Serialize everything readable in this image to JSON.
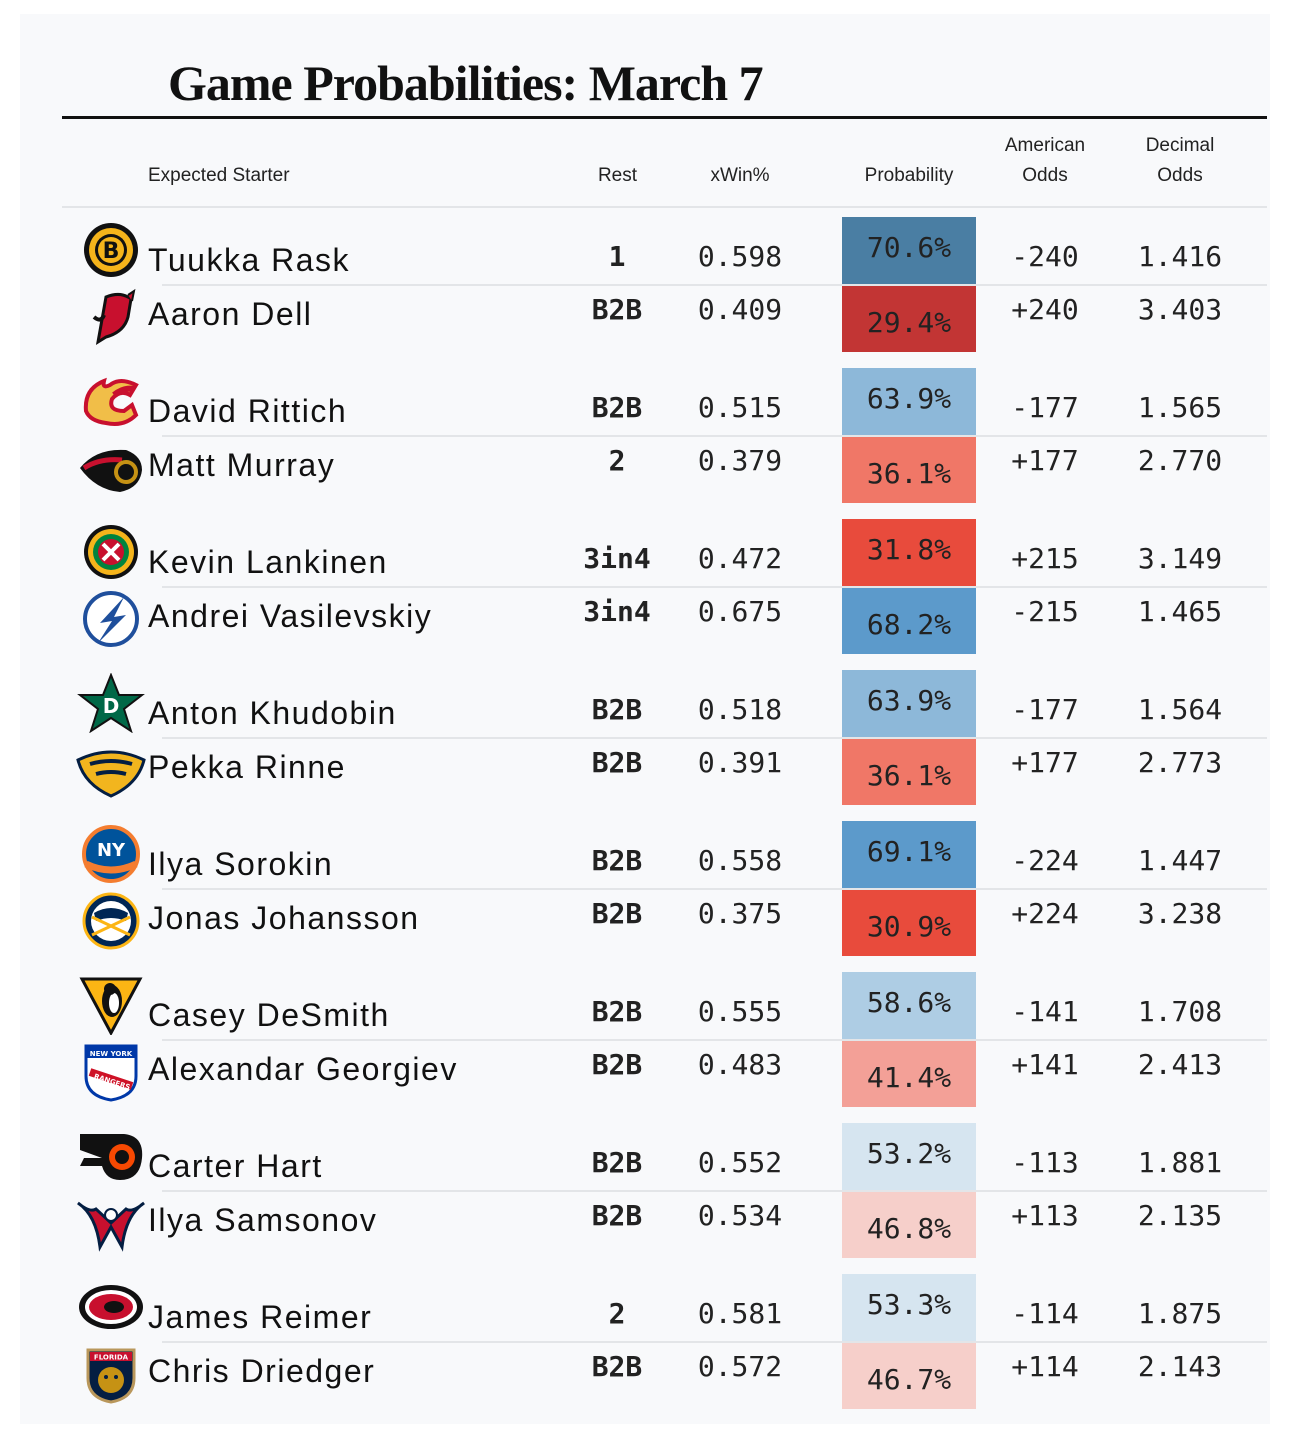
{
  "title": "Game Probabilities: March 7",
  "headers": {
    "starter": "Expected Starter",
    "rest": "Rest",
    "xwin": "xWin%",
    "probability": "Probability",
    "american_1": "American",
    "american_2": "Odds",
    "decimal_1": "Decimal",
    "decimal_2": "Odds"
  },
  "colors": {
    "blue_strong": "#4a7ea3",
    "blue_mid": "#5c9acb",
    "blue_light": "#8db8d9",
    "blue_pale": "#aecde4",
    "blue_faint": "#d6e5f0",
    "red_strong": "#c23534",
    "red_bright": "#e84b3c",
    "red_mid": "#f07767",
    "red_light": "#f3a097",
    "red_faint": "#f6cfca"
  },
  "games": [
    {
      "rows": [
        {
          "team": "boston-bruins-logo",
          "starter": "Tuukka Rask",
          "rest": "1",
          "xwin": "0.598",
          "probability": "70.6%",
          "prob_value": 70.6,
          "american": "-240",
          "decimal": "1.416",
          "color": "#4a7ea3"
        },
        {
          "team": "new-jersey-devils-logo",
          "starter": "Aaron Dell",
          "rest": "B2B",
          "xwin": "0.409",
          "probability": "29.4%",
          "prob_value": 29.4,
          "american": "+240",
          "decimal": "3.403",
          "color": "#c23534"
        }
      ]
    },
    {
      "rows": [
        {
          "team": "calgary-flames-logo",
          "starter": "David Rittich",
          "rest": "B2B",
          "xwin": "0.515",
          "probability": "63.9%",
          "prob_value": 63.9,
          "american": "-177",
          "decimal": "1.565",
          "color": "#8db8d9"
        },
        {
          "team": "ottawa-senators-logo",
          "starter": "Matt Murray",
          "rest": "2",
          "xwin": "0.379",
          "probability": "36.1%",
          "prob_value": 36.1,
          "american": "+177",
          "decimal": "2.770",
          "color": "#f07767"
        }
      ]
    },
    {
      "rows": [
        {
          "team": "chicago-blackhawks-logo",
          "starter": "Kevin Lankinen",
          "rest": "3in4",
          "xwin": "0.472",
          "probability": "31.8%",
          "prob_value": 31.8,
          "american": "+215",
          "decimal": "3.149",
          "color": "#e84b3c"
        },
        {
          "team": "tampa-bay-lightning-logo",
          "starter": "Andrei Vasilevskiy",
          "rest": "3in4",
          "xwin": "0.675",
          "probability": "68.2%",
          "prob_value": 68.2,
          "american": "-215",
          "decimal": "1.465",
          "color": "#5c9acb"
        }
      ]
    },
    {
      "rows": [
        {
          "team": "dallas-stars-logo",
          "starter": "Anton Khudobin",
          "rest": "B2B",
          "xwin": "0.518",
          "probability": "63.9%",
          "prob_value": 63.9,
          "american": "-177",
          "decimal": "1.564",
          "color": "#8db8d9"
        },
        {
          "team": "nashville-predators-logo",
          "starter": "Pekka Rinne",
          "rest": "B2B",
          "xwin": "0.391",
          "probability": "36.1%",
          "prob_value": 36.1,
          "american": "+177",
          "decimal": "2.773",
          "color": "#f07767"
        }
      ]
    },
    {
      "rows": [
        {
          "team": "new-york-islanders-logo",
          "starter": "Ilya Sorokin",
          "rest": "B2B",
          "xwin": "0.558",
          "probability": "69.1%",
          "prob_value": 69.1,
          "american": "-224",
          "decimal": "1.447",
          "color": "#5c9acb"
        },
        {
          "team": "buffalo-sabres-logo",
          "starter": "Jonas Johansson",
          "rest": "B2B",
          "xwin": "0.375",
          "probability": "30.9%",
          "prob_value": 30.9,
          "american": "+224",
          "decimal": "3.238",
          "color": "#e84b3c"
        }
      ]
    },
    {
      "rows": [
        {
          "team": "pittsburgh-penguins-logo",
          "starter": "Casey DeSmith",
          "rest": "B2B",
          "xwin": "0.555",
          "probability": "58.6%",
          "prob_value": 58.6,
          "american": "-141",
          "decimal": "1.708",
          "color": "#aecde4"
        },
        {
          "team": "new-york-rangers-logo",
          "starter": "Alexandar Georgiev",
          "rest": "B2B",
          "xwin": "0.483",
          "probability": "41.4%",
          "prob_value": 41.4,
          "american": "+141",
          "decimal": "2.413",
          "color": "#f3a097"
        }
      ]
    },
    {
      "rows": [
        {
          "team": "philadelphia-flyers-logo",
          "starter": "Carter Hart",
          "rest": "B2B",
          "xwin": "0.552",
          "probability": "53.2%",
          "prob_value": 53.2,
          "american": "-113",
          "decimal": "1.881",
          "color": "#d6e5f0"
        },
        {
          "team": "washington-capitals-logo",
          "starter": "Ilya Samsonov",
          "rest": "B2B",
          "xwin": "0.534",
          "probability": "46.8%",
          "prob_value": 46.8,
          "american": "+113",
          "decimal": "2.135",
          "color": "#f6cfca"
        }
      ]
    },
    {
      "rows": [
        {
          "team": "carolina-hurricanes-logo",
          "starter": "James Reimer",
          "rest": "2",
          "xwin": "0.581",
          "probability": "53.3%",
          "prob_value": 53.3,
          "american": "-114",
          "decimal": "1.875",
          "color": "#d6e5f0"
        },
        {
          "team": "florida-panthers-logo",
          "starter": "Chris Driedger",
          "rest": "B2B",
          "xwin": "0.572",
          "probability": "46.7%",
          "prob_value": 46.7,
          "american": "+114",
          "decimal": "2.143",
          "color": "#f6cfca"
        }
      ]
    }
  ],
  "logo_text": {
    "ny_islanders": "NY",
    "ny_rangers_1": "NEW YORK",
    "ny_rangers_2": "RANGERS",
    "florida": "FLORIDA"
  }
}
